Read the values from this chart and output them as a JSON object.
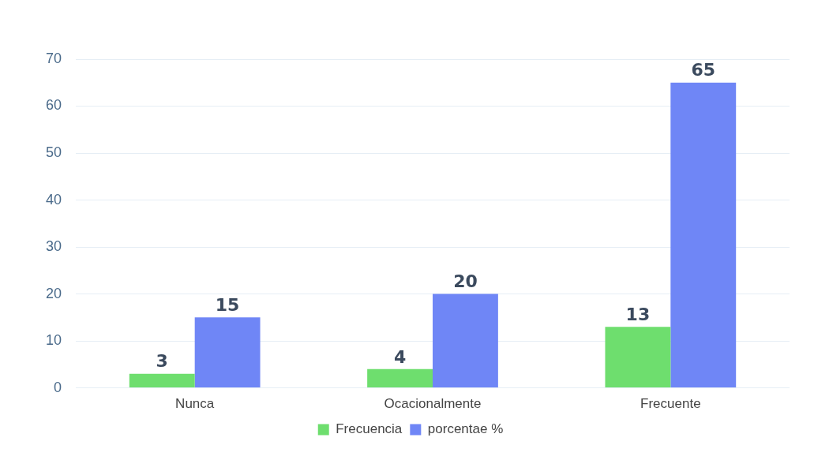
{
  "chart_data": {
    "type": "bar",
    "categories": [
      "Nunca",
      "Ocacionalmente",
      "Frecuente"
    ],
    "series": [
      {
        "name": "Frecuencia",
        "color": "#6ede6e",
        "values": [
          3,
          4,
          13
        ]
      },
      {
        "name": "porcentae %",
        "color": "#6f86f6",
        "values": [
          15,
          20,
          65
        ]
      }
    ],
    "ylim": [
      0,
      70
    ],
    "yticks": [
      0,
      10,
      20,
      30,
      40,
      50,
      60,
      70
    ],
    "grid": "y",
    "legend": "bottom",
    "data_labels": true
  }
}
